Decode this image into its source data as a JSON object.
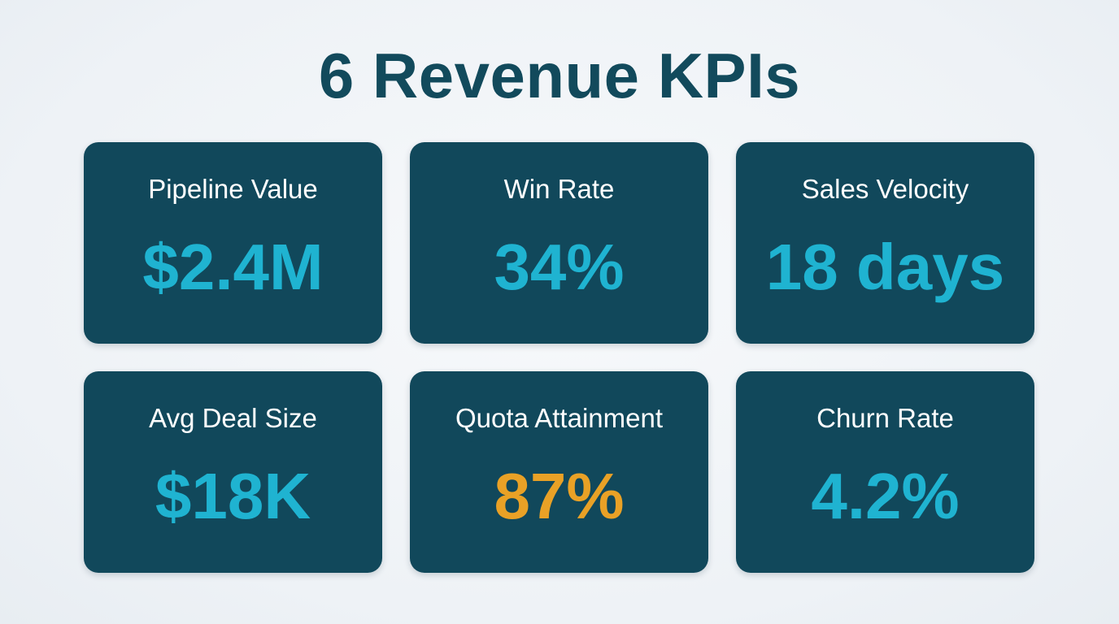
{
  "title": "6 Revenue KPIs",
  "colors": {
    "background": "#eef2f6",
    "title": "#124a5c",
    "card": "#11485b",
    "label": "#ffffff",
    "value_default": "#1fb3d1",
    "value_highlight": "#e9a126"
  },
  "kpis": [
    {
      "label": "Pipeline Value",
      "value": "$2.4M",
      "highlight": false
    },
    {
      "label": "Win Rate",
      "value": "34%",
      "highlight": false
    },
    {
      "label": "Sales Velocity",
      "value": "18 days",
      "highlight": false
    },
    {
      "label": "Avg Deal Size",
      "value": "$18K",
      "highlight": false
    },
    {
      "label": "Quota Attainment",
      "value": "87%",
      "highlight": true
    },
    {
      "label": "Churn Rate",
      "value": "4.2%",
      "highlight": false
    }
  ]
}
